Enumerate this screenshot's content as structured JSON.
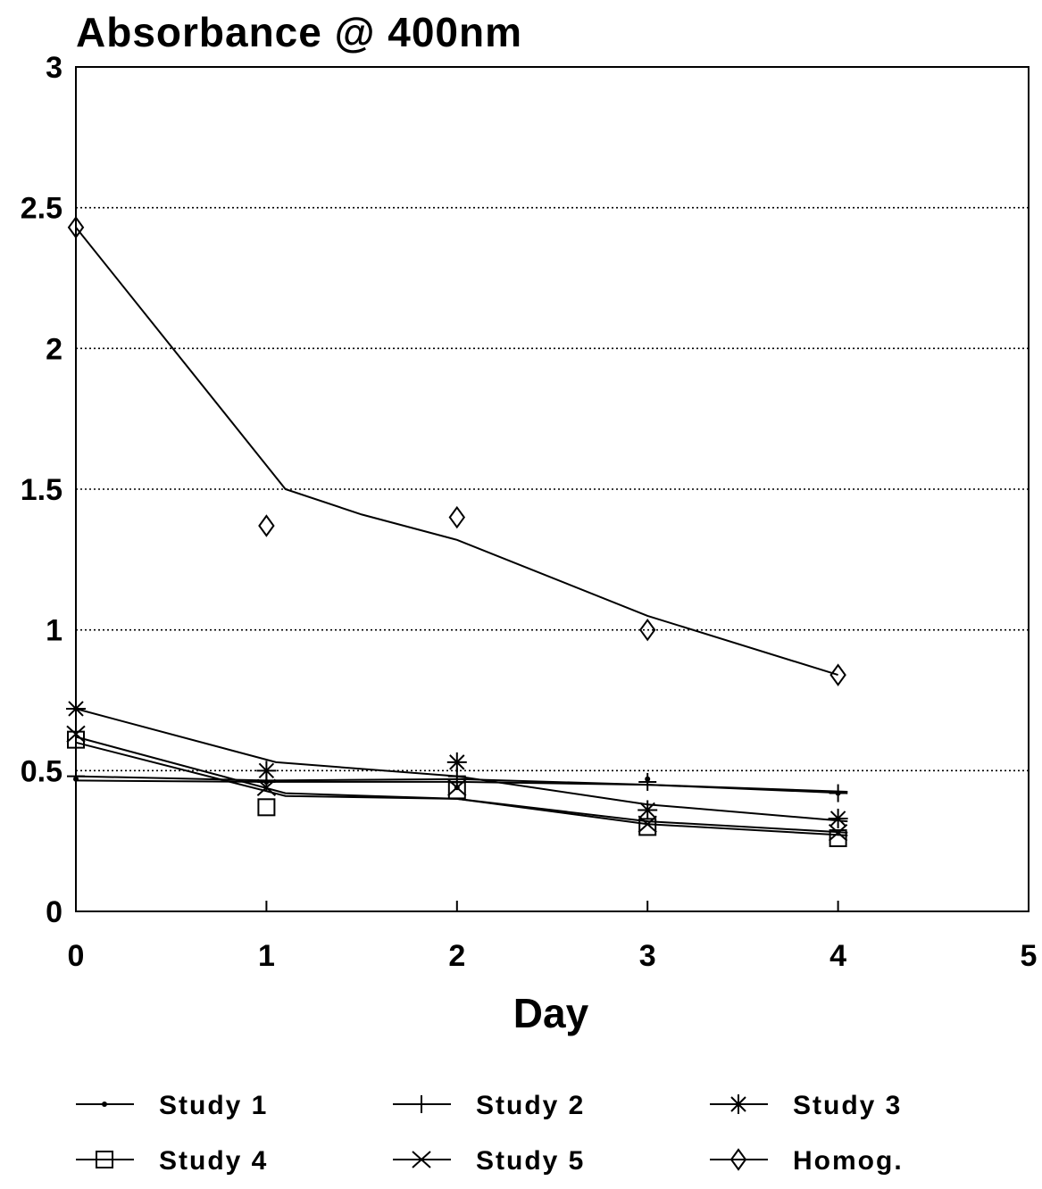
{
  "chart_data": {
    "type": "line",
    "title": "Absorbance @ 400nm",
    "xlabel": "Day",
    "ylabel": "",
    "xlim": [
      0,
      5
    ],
    "ylim": [
      0,
      3
    ],
    "x_ticks": [
      "0",
      "1",
      "2",
      "3",
      "4",
      "5"
    ],
    "y_ticks": [
      "0",
      "0.5",
      "1",
      "1.5",
      "2",
      "2.5",
      "3"
    ],
    "grid": "horizontal dotted",
    "legend_position": "bottom",
    "series": [
      {
        "name": "Study 1",
        "marker": "dot",
        "points": [
          [
            0,
            0.47
          ],
          [
            1,
            0.46
          ],
          [
            2,
            0.44
          ],
          [
            3,
            0.47
          ],
          [
            4,
            0.42
          ]
        ],
        "fit": [
          [
            0,
            0.465
          ],
          [
            1,
            0.46
          ],
          [
            2,
            0.46
          ],
          [
            3,
            0.45
          ],
          [
            4.05,
            0.42
          ]
        ]
      },
      {
        "name": "Study 2",
        "marker": "plus",
        "points": [
          [
            0,
            0.48
          ],
          [
            1,
            0.46
          ],
          [
            2,
            0.48
          ],
          [
            3,
            0.46
          ],
          [
            4,
            0.42
          ]
        ],
        "fit": [
          [
            0,
            0.48
          ],
          [
            1,
            0.465
          ],
          [
            2,
            0.47
          ],
          [
            3,
            0.45
          ],
          [
            4.05,
            0.425
          ]
        ]
      },
      {
        "name": "Study 3",
        "marker": "asterisk",
        "points": [
          [
            0,
            0.72
          ],
          [
            1,
            0.5
          ],
          [
            2,
            0.53
          ],
          [
            3,
            0.36
          ],
          [
            4,
            0.33
          ]
        ],
        "fit": [
          [
            0,
            0.72
          ],
          [
            1.05,
            0.53
          ],
          [
            2,
            0.48
          ],
          [
            3,
            0.38
          ],
          [
            4.05,
            0.32
          ]
        ]
      },
      {
        "name": "Study 4",
        "marker": "square",
        "points": [
          [
            0,
            0.61
          ],
          [
            1,
            0.37
          ],
          [
            2,
            0.43
          ],
          [
            3,
            0.3
          ],
          [
            4,
            0.26
          ]
        ],
        "fit": [
          [
            0,
            0.6
          ],
          [
            1.1,
            0.41
          ],
          [
            2,
            0.4
          ],
          [
            3,
            0.31
          ],
          [
            4.05,
            0.27
          ]
        ]
      },
      {
        "name": "Study 5",
        "marker": "x",
        "points": [
          [
            0,
            0.63
          ],
          [
            1,
            0.44
          ],
          [
            2,
            0.44
          ],
          [
            3,
            0.31
          ],
          [
            4,
            0.28
          ]
        ],
        "fit": [
          [
            0,
            0.62
          ],
          [
            1.1,
            0.42
          ],
          [
            2,
            0.4
          ],
          [
            3,
            0.32
          ],
          [
            4.05,
            0.28
          ]
        ]
      },
      {
        "name": "Homog.",
        "marker": "diamond",
        "points": [
          [
            0,
            2.43
          ],
          [
            1,
            1.37
          ],
          [
            2,
            1.4
          ],
          [
            3,
            1.0
          ],
          [
            4,
            0.84
          ]
        ],
        "fit": [
          [
            0,
            2.43
          ],
          [
            1.1,
            1.5
          ],
          [
            1.5,
            1.41
          ],
          [
            2,
            1.32
          ],
          [
            3,
            1.05
          ],
          [
            4,
            0.84
          ]
        ]
      }
    ]
  }
}
